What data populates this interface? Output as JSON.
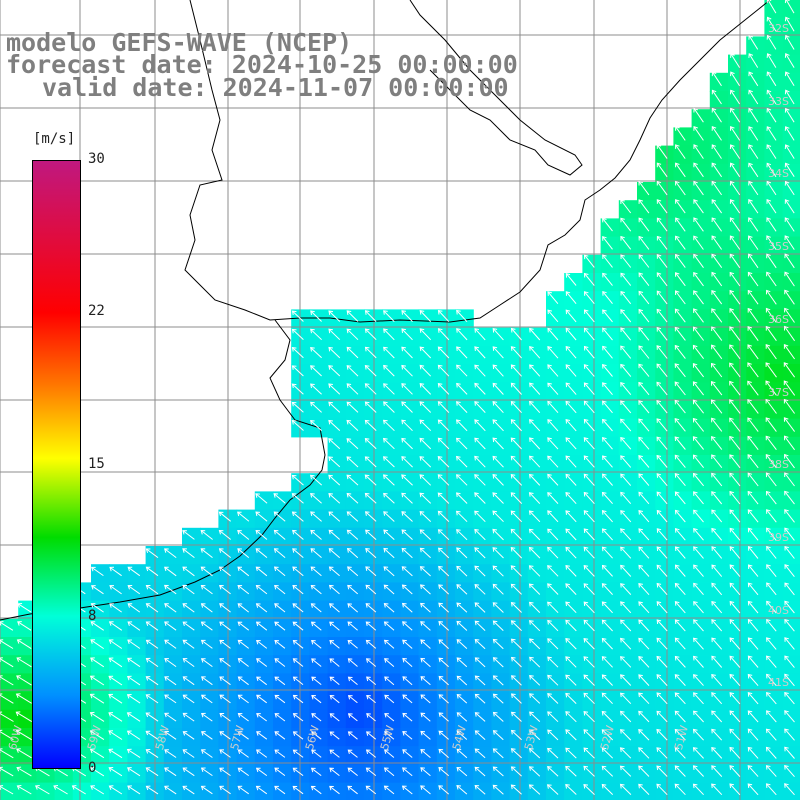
{
  "header": {
    "line1": "modelo GEFS-WAVE (NCEP)",
    "line2": "forecast date: 2024-10-25 00:00:00",
    "line3": "valid date: 2024-11-07 00:00:00"
  },
  "colorbar": {
    "unit": "[m/s]",
    "ticks": [
      "30",
      "22",
      "15",
      "8",
      "0"
    ],
    "colors": [
      "#c0187f",
      "#ff0000",
      "#ff7800",
      "#ffff00",
      "#00dc00",
      "#00ffd8",
      "#0090ff",
      "#0000ff"
    ]
  },
  "grid": {
    "lat_labels": [
      "32S",
      "33S",
      "34S",
      "35S",
      "36S",
      "37S",
      "38S",
      "39S",
      "40S",
      "41S"
    ],
    "lon_labels": [
      "60W",
      "59W",
      "58W",
      "57W",
      "56W",
      "55W",
      "54W",
      "53W",
      "52W",
      "51W"
    ]
  },
  "colors": {
    "land": "#ffffff",
    "grid": "#8c8c8c",
    "coast": "#000000",
    "arrow": "#ffffff"
  }
}
